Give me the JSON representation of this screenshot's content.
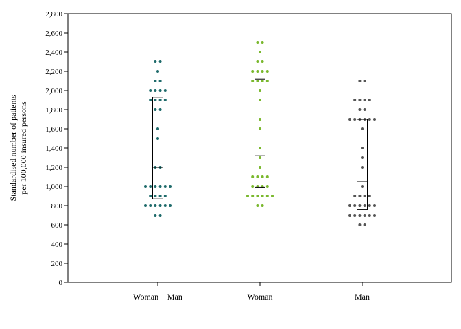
{
  "chart_data": {
    "type": "scatter",
    "subtype": "dot-strip-with-box",
    "title": "",
    "xlabel": "",
    "ylabel_lines": [
      "Standardised number of patients",
      "per 100,000 insured persons"
    ],
    "ylim": [
      0,
      2800
    ],
    "yticks": [
      0,
      200,
      400,
      600,
      800,
      1000,
      1200,
      1400,
      1600,
      1800,
      2000,
      2200,
      2400,
      2600,
      2800
    ],
    "ytick_labels": [
      "0",
      "200",
      "400",
      "600",
      "800",
      "1,000",
      "1,200",
      "1,400",
      "1,600",
      "1,800",
      "2,000",
      "2,200",
      "2,400",
      "2,600",
      "2,800"
    ],
    "grid": false,
    "categories": [
      "Woman + Man",
      "Woman",
      "Man"
    ],
    "groups": [
      {
        "category": "Woman + Man",
        "color": "#1f6b6b",
        "box": {
          "q1": 870,
          "median": 1200,
          "q3": 1930
        },
        "levels": [
          {
            "y": 700,
            "count": 2
          },
          {
            "y": 800,
            "count": 6
          },
          {
            "y": 900,
            "count": 4
          },
          {
            "y": 1000,
            "count": 6
          },
          {
            "y": 1200,
            "count": 2
          },
          {
            "y": 1500,
            "count": 1
          },
          {
            "y": 1600,
            "count": 1
          },
          {
            "y": 1800,
            "count": 2
          },
          {
            "y": 1900,
            "count": 4
          },
          {
            "y": 2000,
            "count": 4
          },
          {
            "y": 2100,
            "count": 2
          },
          {
            "y": 2200,
            "count": 1
          },
          {
            "y": 2300,
            "count": 2
          }
        ]
      },
      {
        "category": "Woman",
        "color": "#7ab82e",
        "box": {
          "q1": 990,
          "median": 1320,
          "q3": 2120
        },
        "levels": [
          {
            "y": 800,
            "count": 2
          },
          {
            "y": 900,
            "count": 6
          },
          {
            "y": 1000,
            "count": 4
          },
          {
            "y": 1100,
            "count": 4
          },
          {
            "y": 1200,
            "count": 1
          },
          {
            "y": 1300,
            "count": 1
          },
          {
            "y": 1400,
            "count": 1
          },
          {
            "y": 1600,
            "count": 1
          },
          {
            "y": 1700,
            "count": 1
          },
          {
            "y": 1900,
            "count": 1
          },
          {
            "y": 2000,
            "count": 1
          },
          {
            "y": 2100,
            "count": 4
          },
          {
            "y": 2200,
            "count": 4
          },
          {
            "y": 2300,
            "count": 2
          },
          {
            "y": 2400,
            "count": 1
          },
          {
            "y": 2500,
            "count": 2
          }
        ]
      },
      {
        "category": "Man",
        "color": "#555555",
        "box": {
          "q1": 760,
          "median": 1050,
          "q3": 1700
        },
        "levels": [
          {
            "y": 600,
            "count": 2
          },
          {
            "y": 700,
            "count": 6
          },
          {
            "y": 800,
            "count": 6
          },
          {
            "y": 900,
            "count": 4
          },
          {
            "y": 1000,
            "count": 1
          },
          {
            "y": 1200,
            "count": 1
          },
          {
            "y": 1300,
            "count": 1
          },
          {
            "y": 1400,
            "count": 1
          },
          {
            "y": 1600,
            "count": 1
          },
          {
            "y": 1700,
            "count": 6
          },
          {
            "y": 1800,
            "count": 2
          },
          {
            "y": 1900,
            "count": 4
          },
          {
            "y": 2100,
            "count": 2
          }
        ]
      }
    ]
  }
}
